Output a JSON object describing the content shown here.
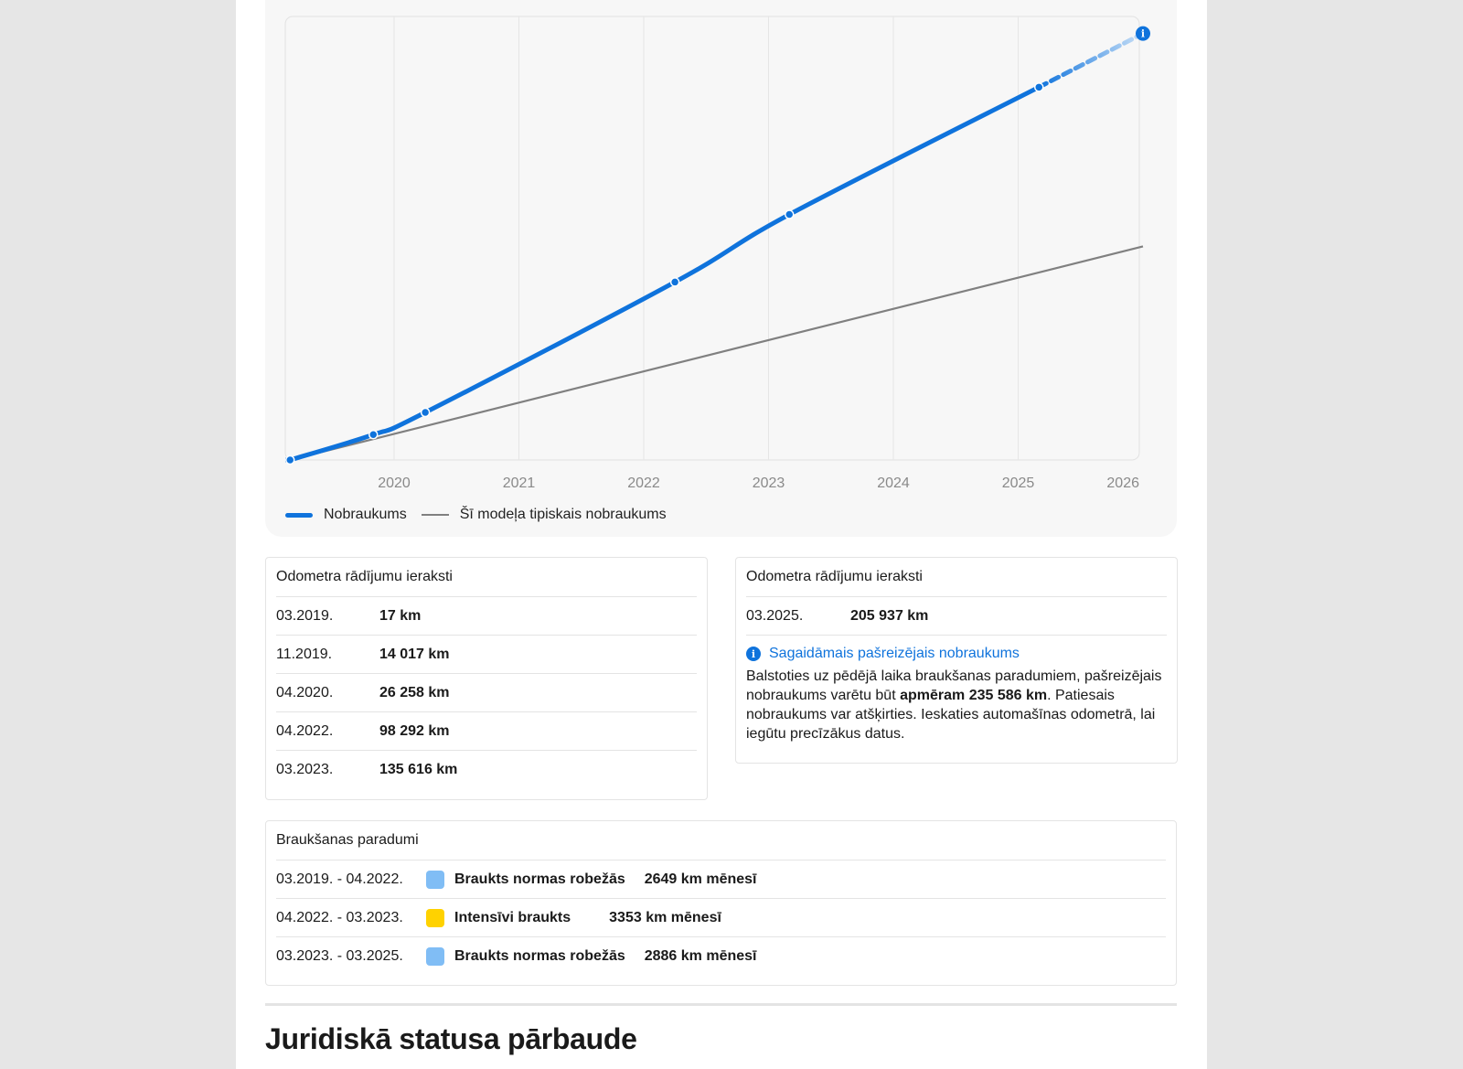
{
  "chart_data": {
    "type": "line",
    "x_ticks": [
      "2020",
      "2021",
      "2022",
      "2023",
      "2024",
      "2025",
      "2026"
    ],
    "xlim": [
      2019.1,
      2026.1
    ],
    "ylim": [
      0,
      245000
    ],
    "series": [
      {
        "name": "Nobraukums",
        "color": "#0f73dc",
        "points": [
          {
            "x": "03.2019",
            "y": 17
          },
          {
            "x": "11.2019",
            "y": 14017
          },
          {
            "x": "04.2020",
            "y": 26258
          },
          {
            "x": "04.2022",
            "y": 98292
          },
          {
            "x": "03.2023",
            "y": 135616
          },
          {
            "x": "03.2025",
            "y": 205937
          }
        ],
        "projection": {
          "x": "01.2026",
          "y": 235586
        }
      },
      {
        "name": "Šī modeļa tipiskais nobraukums",
        "color": "#808080",
        "points": [
          {
            "x": "03.2019",
            "y": 17
          },
          {
            "x": "01.2026",
            "y": 118000
          }
        ]
      }
    ],
    "legend": [
      "Nobraukums",
      "Šī modeļa tipiskais nobraukums"
    ],
    "grid": true
  },
  "odometer_left": {
    "title": "Odometra rādījumu ieraksti",
    "rows": [
      {
        "date": "03.2019.",
        "value": "17 km"
      },
      {
        "date": "11.2019.",
        "value": "14 017 km"
      },
      {
        "date": "04.2020.",
        "value": "26 258 km"
      },
      {
        "date": "04.2022.",
        "value": "98 292 km"
      },
      {
        "date": "03.2023.",
        "value": "135 616 km"
      }
    ]
  },
  "odometer_right": {
    "title": "Odometra rādījumu ieraksti",
    "rows": [
      {
        "date": "03.2025.",
        "value": "205 937 km"
      }
    ],
    "info_title": "Sagaidāmais pašreizējais nobraukums",
    "info_text_1": "Balstoties uz pēdējā laika braukšanas paradumiem, pašreizējais nobraukums varētu būt ",
    "info_bold": "apmēram 235 586 km",
    "info_text_2": ". Patiesais nobraukums var atšķirties. Ieskaties automašīnas odometrā, lai iegūtu precīzākus datus."
  },
  "habits": {
    "title": "Braukšanas paradumi",
    "rows": [
      {
        "period": "03.2019. - 04.2022.",
        "color": "#80bdf5",
        "label": "Braukts normas robežās",
        "rate": "2649 km mēnesī"
      },
      {
        "period": "04.2022. - 03.2023.",
        "color": "#ffd200",
        "label": "Intensīvi braukts",
        "rate": "3353 km mēnesī"
      },
      {
        "period": "03.2023. - 03.2025.",
        "color": "#80bdf5",
        "label": "Braukts normas robežās",
        "rate": "2886 km mēnesī"
      }
    ]
  },
  "section": {
    "title": "Juridiskā statusa pārbaude"
  }
}
